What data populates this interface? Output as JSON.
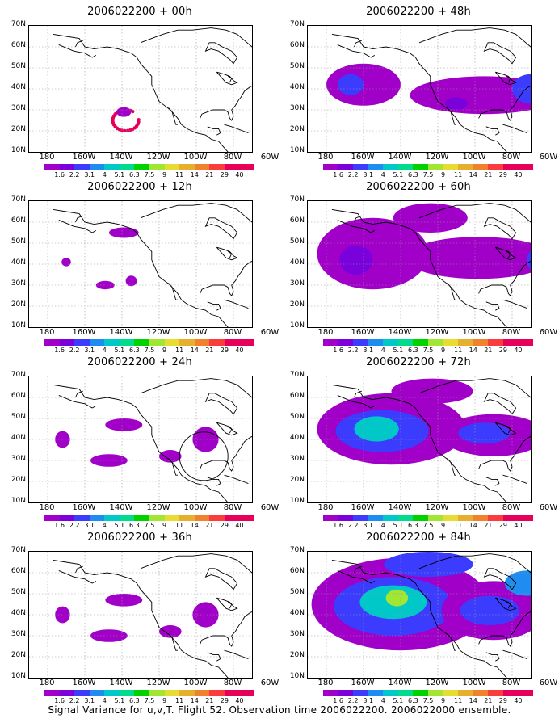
{
  "figure": {
    "caption": "Signal Variance for u,v,T. Flight 52. Observation time 2006022200. 2006022000 ensemble.",
    "panels": [
      {
        "title": "2006022200 + 00h",
        "level": 0
      },
      {
        "title": "2006022200 + 48h",
        "level": 3
      },
      {
        "title": "2006022200 + 12h",
        "level": 1
      },
      {
        "title": "2006022200 + 60h",
        "level": 4
      },
      {
        "title": "2006022200 + 24h",
        "level": 2
      },
      {
        "title": "2006022200 + 72h",
        "level": 5
      },
      {
        "title": "2006022200 + 36h",
        "level": 2
      },
      {
        "title": "2006022200 + 84h",
        "level": 6
      }
    ],
    "y_ticks": [
      "70N",
      "60N",
      "50N",
      "40N",
      "30N",
      "20N",
      "10N"
    ],
    "x_ticks": [
      "180",
      "160W",
      "140W",
      "120W",
      "100W",
      "80W",
      "60W"
    ],
    "colorbar_labels": [
      "1.6",
      "2.2",
      "3.1",
      "4",
      "5.1",
      "6.3",
      "7.5",
      "9",
      "11",
      "14",
      "21",
      "29",
      "40"
    ],
    "colorbar_colors": [
      "#a000c8",
      "#7a00dc",
      "#3c3cff",
      "#1e8cf0",
      "#00c8c8",
      "#00dc8c",
      "#00d200",
      "#a0e632",
      "#e6dc32",
      "#e6af2d",
      "#f0822d",
      "#fa3c3c",
      "#e6005a"
    ]
  }
}
